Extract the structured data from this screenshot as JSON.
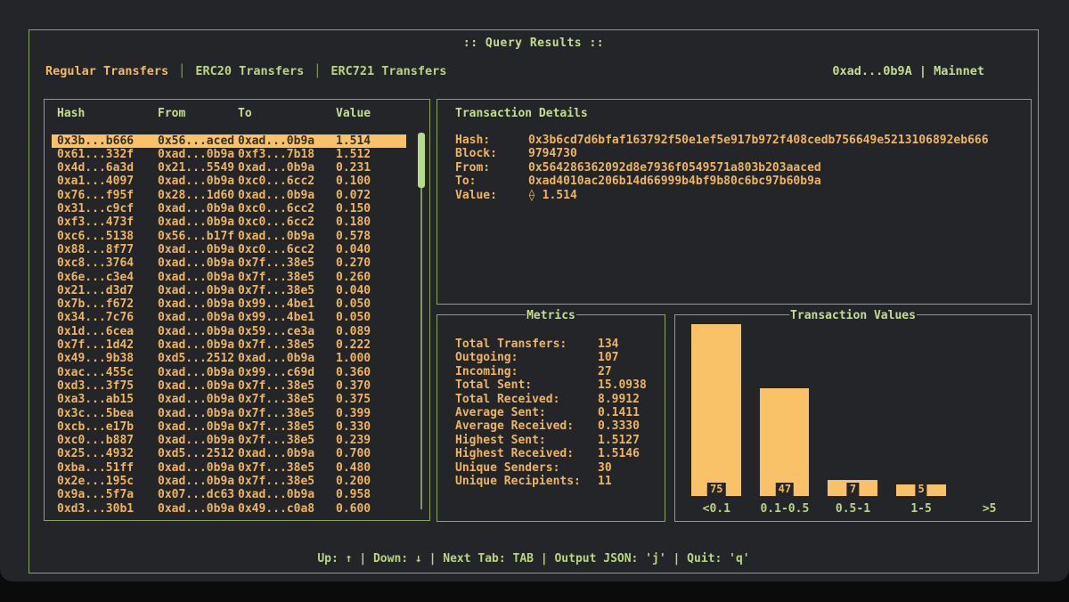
{
  "ui": {
    "app_title": ":: Query Results ::",
    "tab_separator": "│",
    "account_label": "0xad...0b9A | Mainnet",
    "footer_hint": "Up: ↑ | Down: ↓ | Next Tab: TAB | Output JSON: 'j' | Quit: 'q'"
  },
  "tabs": [
    {
      "label": "Regular Transfers",
      "active": true
    },
    {
      "label": "ERC20 Transfers",
      "active": false
    },
    {
      "label": "ERC721 Transfers",
      "active": false
    }
  ],
  "table": {
    "columns": [
      "Hash",
      "From",
      "To",
      "Value"
    ],
    "selected_index": 0,
    "rows": [
      [
        "0x3b...b666",
        "0x56...aced",
        "0xad...0b9a",
        "1.514"
      ],
      [
        "0x61...332f",
        "0xad...0b9a",
        "0xf3...7b18",
        "1.512"
      ],
      [
        "0x4d...6a3d",
        "0x21...5549",
        "0xad...0b9a",
        "0.231"
      ],
      [
        "0xa1...4097",
        "0xad...0b9a",
        "0xc0...6cc2",
        "0.100"
      ],
      [
        "0x76...f95f",
        "0x28...1d60",
        "0xad...0b9a",
        "0.072"
      ],
      [
        "0x31...c9cf",
        "0xad...0b9a",
        "0xc0...6cc2",
        "0.150"
      ],
      [
        "0xf3...473f",
        "0xad...0b9a",
        "0xc0...6cc2",
        "0.180"
      ],
      [
        "0xc6...5138",
        "0x56...b17f",
        "0xad...0b9a",
        "0.578"
      ],
      [
        "0x88...8f77",
        "0xad...0b9a",
        "0xc0...6cc2",
        "0.040"
      ],
      [
        "0xc8...3764",
        "0xad...0b9a",
        "0x7f...38e5",
        "0.270"
      ],
      [
        "0x6e...c3e4",
        "0xad...0b9a",
        "0x7f...38e5",
        "0.260"
      ],
      [
        "0x21...d3d7",
        "0xad...0b9a",
        "0x7f...38e5",
        "0.040"
      ],
      [
        "0x7b...f672",
        "0xad...0b9a",
        "0x99...4be1",
        "0.050"
      ],
      [
        "0x34...7c76",
        "0xad...0b9a",
        "0x99...4be1",
        "0.050"
      ],
      [
        "0x1d...6cea",
        "0xad...0b9a",
        "0x59...ce3a",
        "0.089"
      ],
      [
        "0x7f...1d42",
        "0xad...0b9a",
        "0x7f...38e5",
        "0.222"
      ],
      [
        "0x49...9b38",
        "0xd5...2512",
        "0xad...0b9a",
        "1.000"
      ],
      [
        "0xac...455c",
        "0xad...0b9a",
        "0x99...c69d",
        "0.360"
      ],
      [
        "0xd3...3f75",
        "0xad...0b9a",
        "0x7f...38e5",
        "0.370"
      ],
      [
        "0xa3...ab15",
        "0xad...0b9a",
        "0x7f...38e5",
        "0.375"
      ],
      [
        "0x3c...5bea",
        "0xad...0b9a",
        "0x7f...38e5",
        "0.399"
      ],
      [
        "0xcb...e17b",
        "0xad...0b9a",
        "0x7f...38e5",
        "0.330"
      ],
      [
        "0xc0...b887",
        "0xad...0b9a",
        "0x7f...38e5",
        "0.239"
      ],
      [
        "0x25...4932",
        "0xd5...2512",
        "0xad...0b9a",
        "0.700"
      ],
      [
        "0xba...51ff",
        "0xad...0b9a",
        "0x7f...38e5",
        "0.480"
      ],
      [
        "0x2e...195c",
        "0xad...0b9a",
        "0x7f...38e5",
        "0.200"
      ],
      [
        "0x9a...5f7a",
        "0x07...dc63",
        "0xad...0b9a",
        "0.958"
      ],
      [
        "0xd3...30b1",
        "0xad...0b9a",
        "0x49...c0a8",
        "0.600"
      ]
    ]
  },
  "details": {
    "title": "Transaction Details",
    "fields": [
      {
        "label": "Hash:",
        "value": "0x3b6cd7d6bfaf163792f50e1ef5e917b972f408cedb756649e5213106892eb666"
      },
      {
        "label": "Block:",
        "value": "9794730"
      },
      {
        "label": "From:",
        "value": "0x564286362092d8e7936f0549571a803b203aaced"
      },
      {
        "label": "To:",
        "value": "0xad4010ac206b14d66999b4bf9b80c6bc97b60b9a"
      },
      {
        "label": "Value:",
        "value": "⟠ 1.514"
      }
    ]
  },
  "metrics": {
    "title": "Metrics",
    "items": [
      {
        "label": "Total Transfers:",
        "value": "134"
      },
      {
        "label": "Outgoing:",
        "value": "107"
      },
      {
        "label": "Incoming:",
        "value": "27"
      },
      {
        "label": "Total Sent:",
        "value": "15.0938"
      },
      {
        "label": "Total Received:",
        "value": "8.9912"
      },
      {
        "label": "Average Sent:",
        "value": "0.1411"
      },
      {
        "label": "Average Received:",
        "value": "0.3330"
      },
      {
        "label": "Highest Sent:",
        "value": "1.5127"
      },
      {
        "label": "Highest Received:",
        "value": "1.5146"
      },
      {
        "label": "Unique Senders:",
        "value": "30"
      },
      {
        "label": "Unique Recipients:",
        "value": "11"
      }
    ]
  },
  "chart_data": {
    "type": "bar",
    "title": "Transaction Values",
    "categories": [
      "<0.1",
      "0.1-0.5",
      "0.5-1",
      "1-5",
      ">5"
    ],
    "values": [
      75,
      47,
      7,
      5,
      0
    ],
    "ylim": [
      0,
      75
    ],
    "xlabel": "",
    "ylabel": "",
    "grid": false,
    "legend": false,
    "value_labels_shown": true
  },
  "colors": {
    "background": "#242529",
    "border_green": "#89a561",
    "text_green": "#c5dd90",
    "text_amber": "#eeb55e",
    "selected_bg": "#f9c269",
    "bar_fill": "#f9c269",
    "scroll_thumb": "#b6dc8b"
  }
}
